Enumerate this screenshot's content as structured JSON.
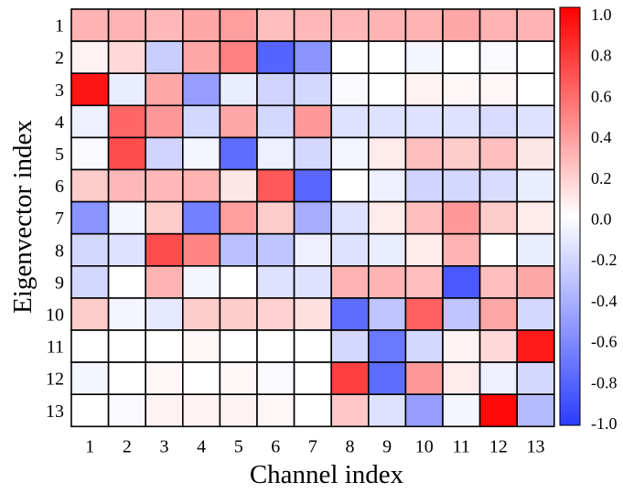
{
  "chart_data": {
    "type": "heatmap",
    "xlabel": "Channel index",
    "ylabel": "Eigenvector index",
    "x_categories": [
      "1",
      "2",
      "3",
      "4",
      "5",
      "6",
      "7",
      "8",
      "9",
      "10",
      "11",
      "12",
      "13"
    ],
    "y_categories": [
      "1",
      "2",
      "3",
      "4",
      "5",
      "6",
      "7",
      "8",
      "9",
      "10",
      "11",
      "12",
      "13"
    ],
    "colorbar": {
      "min": -1.0,
      "max": 1.0,
      "ticks": [
        "1.0",
        "0.8",
        "0.6",
        "0.4",
        "0.2",
        "0.0",
        "-0.2",
        "-0.4",
        "-0.6",
        "-0.8",
        "-1.0"
      ],
      "colors": {
        "negative": "#2a3cff",
        "zero": "#ffffff",
        "positive": "#ff0000"
      }
    },
    "values": [
      [
        0.3,
        0.3,
        0.28,
        0.35,
        0.38,
        0.25,
        0.28,
        0.28,
        0.3,
        0.3,
        0.35,
        0.3,
        0.3
      ],
      [
        0.05,
        0.15,
        -0.25,
        0.35,
        0.5,
        -0.8,
        -0.55,
        0.0,
        0.0,
        -0.05,
        0.0,
        -0.03,
        0.0
      ],
      [
        0.92,
        -0.1,
        0.35,
        -0.5,
        -0.1,
        -0.22,
        -0.2,
        -0.03,
        0.0,
        0.05,
        0.03,
        0.03,
        0.0
      ],
      [
        -0.08,
        0.6,
        0.4,
        -0.2,
        0.35,
        -0.2,
        0.4,
        -0.15,
        -0.15,
        -0.15,
        -0.15,
        -0.18,
        -0.15
      ],
      [
        -0.03,
        0.7,
        -0.22,
        -0.05,
        -0.75,
        -0.08,
        -0.2,
        -0.05,
        0.08,
        0.25,
        0.2,
        0.25,
        0.1
      ],
      [
        0.2,
        0.28,
        0.28,
        0.3,
        0.1,
        0.65,
        -0.78,
        0.0,
        -0.08,
        -0.22,
        -0.2,
        -0.18,
        -0.1
      ],
      [
        -0.55,
        -0.05,
        0.2,
        -0.65,
        0.38,
        0.2,
        -0.42,
        -0.15,
        0.08,
        0.25,
        0.4,
        0.2,
        0.08
      ],
      [
        -0.2,
        -0.15,
        0.7,
        0.48,
        -0.32,
        -0.3,
        -0.08,
        -0.15,
        -0.1,
        0.08,
        0.3,
        0.0,
        -0.1
      ],
      [
        -0.2,
        0.0,
        0.3,
        -0.05,
        0.0,
        -0.15,
        -0.15,
        0.3,
        0.3,
        0.25,
        -0.85,
        0.25,
        0.35
      ],
      [
        0.2,
        -0.05,
        -0.12,
        0.2,
        0.2,
        0.18,
        0.12,
        -0.75,
        -0.3,
        0.62,
        -0.3,
        0.35,
        -0.2
      ],
      [
        0.0,
        0.0,
        0.0,
        0.03,
        0.0,
        0.0,
        0.0,
        -0.2,
        -0.7,
        -0.2,
        0.05,
        0.15,
        0.9
      ],
      [
        -0.05,
        0.0,
        0.03,
        0.0,
        0.03,
        -0.03,
        0.0,
        0.75,
        -0.75,
        0.4,
        0.08,
        -0.08,
        -0.2
      ],
      [
        0.0,
        -0.03,
        0.05,
        0.05,
        0.05,
        0.03,
        0.0,
        0.22,
        -0.15,
        -0.5,
        -0.05,
        0.97,
        -0.35
      ]
    ]
  }
}
